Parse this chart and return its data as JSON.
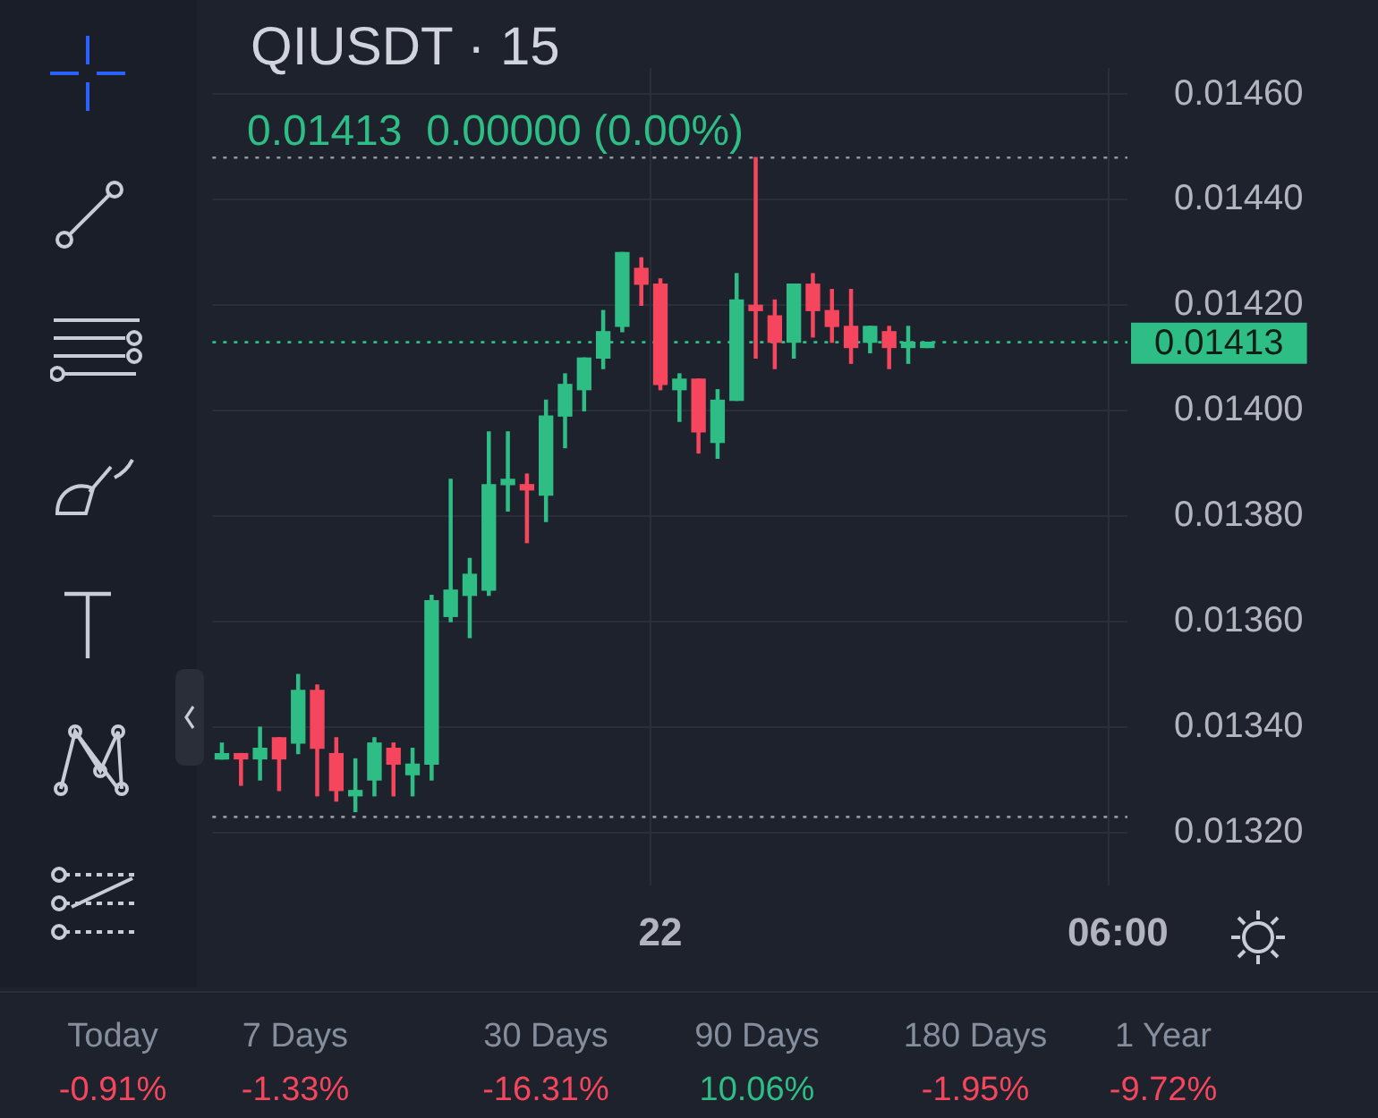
{
  "chart_data": {
    "type": "candlestick",
    "title": "QIUSDT · 15",
    "subtitle": "0.01413  0.00000 (0.00%)",
    "categories": [
      null,
      null,
      null,
      null,
      null,
      null,
      null,
      null,
      null,
      null,
      null,
      null,
      null,
      null,
      null,
      null,
      null,
      null,
      null,
      null,
      null,
      null,
      null,
      "22",
      null,
      null,
      null,
      null,
      null,
      null,
      null,
      null,
      null,
      null,
      null,
      null,
      null,
      null,
      null,
      null,
      null,
      null,
      null,
      null,
      null,
      null,
      null,
      "06:00"
    ],
    "ohlc": [
      [
        0.01334,
        0.01337,
        0.01334,
        0.01335
      ],
      [
        0.01335,
        0.01335,
        0.01329,
        0.01334
      ],
      [
        0.01334,
        0.0134,
        0.0133,
        0.01336
      ],
      [
        0.01338,
        0.01338,
        0.01328,
        0.01334
      ],
      [
        0.01337,
        0.0135,
        0.01335,
        0.01347
      ],
      [
        0.01347,
        0.01348,
        0.01327,
        0.01336
      ],
      [
        0.01335,
        0.01338,
        0.01326,
        0.01328
      ],
      [
        0.01327,
        0.01334,
        0.01324,
        0.01328
      ],
      [
        0.0133,
        0.01338,
        0.01327,
        0.01337
      ],
      [
        0.01336,
        0.01337,
        0.01327,
        0.01333
      ],
      [
        0.01331,
        0.01336,
        0.01327,
        0.01333
      ],
      [
        0.01333,
        0.01365,
        0.0133,
        0.01364
      ],
      [
        0.01361,
        0.01387,
        0.0136,
        0.01366
      ],
      [
        0.01365,
        0.01372,
        0.01357,
        0.01369
      ],
      [
        0.01366,
        0.01396,
        0.01365,
        0.01386
      ],
      [
        0.01386,
        0.01396,
        0.01381,
        0.01387
      ],
      [
        0.01386,
        0.01388,
        0.01375,
        0.01385
      ],
      [
        0.01384,
        0.01402,
        0.01379,
        0.01399
      ],
      [
        0.01399,
        0.01407,
        0.01393,
        0.01405
      ],
      [
        0.01404,
        0.0141,
        0.014,
        0.0141
      ],
      [
        0.0141,
        0.01419,
        0.01408,
        0.01415
      ],
      [
        0.01416,
        0.0143,
        0.01415,
        0.0143
      ],
      [
        0.01427,
        0.01429,
        0.0142,
        0.01424
      ],
      [
        0.01424,
        0.01425,
        0.01404,
        0.01405
      ],
      [
        0.01404,
        0.01407,
        0.01398,
        0.01406
      ],
      [
        0.01406,
        0.01406,
        0.01392,
        0.01396
      ],
      [
        0.01394,
        0.01404,
        0.01391,
        0.01402
      ],
      [
        0.01402,
        0.01426,
        0.01402,
        0.01421
      ],
      [
        0.0142,
        0.01448,
        0.0141,
        0.01419
      ],
      [
        0.01418,
        0.01421,
        0.01408,
        0.01413
      ],
      [
        0.01413,
        0.01424,
        0.0141,
        0.01424
      ],
      [
        0.01424,
        0.01426,
        0.01414,
        0.01419
      ],
      [
        0.01419,
        0.01423,
        0.01413,
        0.01416
      ],
      [
        0.01416,
        0.01423,
        0.01409,
        0.01412
      ],
      [
        0.01413,
        0.01416,
        0.01411,
        0.01416
      ],
      [
        0.01415,
        0.01416,
        0.01408,
        0.01412
      ],
      [
        0.01412,
        0.01416,
        0.01409,
        0.01413
      ],
      [
        0.01412,
        0.01413,
        0.01412,
        0.01413
      ],
      null,
      null,
      null,
      null,
      null,
      null,
      null,
      null,
      null,
      null
    ],
    "colors": [
      "#2ebd85",
      "#f6465d",
      "#2ebd85",
      "#f6465d",
      "#2ebd85",
      "#f6465d",
      "#f6465d",
      "#2ebd85",
      "#2ebd85",
      "#f6465d",
      "#2ebd85",
      "#2ebd85",
      "#2ebd85",
      "#2ebd85",
      "#2ebd85",
      "#2ebd85",
      "#f6465d",
      "#2ebd85",
      "#2ebd85",
      "#2ebd85",
      "#2ebd85",
      "#2ebd85",
      "#f6465d",
      "#f6465d",
      "#2ebd85",
      "#f6465d",
      "#2ebd85",
      "#2ebd85",
      "#f6465d",
      "#f6465d",
      "#2ebd85",
      "#f6465d",
      "#f6465d",
      "#f6465d",
      "#2ebd85",
      "#f6465d",
      "#2ebd85",
      "#2ebd85",
      null,
      null,
      null,
      null,
      null,
      null,
      null,
      null,
      null,
      null
    ],
    "ylim": [
      0.0131,
      0.01465
    ],
    "yticks": [
      {
        "value": 0.0132,
        "label": "0.01320"
      },
      {
        "value": 0.0134,
        "label": "0.01340"
      },
      {
        "value": 0.0136,
        "label": "0.01360"
      },
      {
        "value": 0.0138,
        "label": "0.01380"
      },
      {
        "value": 0.014,
        "label": "0.01400"
      },
      {
        "value": 0.0142,
        "label": "0.01420"
      },
      {
        "value": 0.0144,
        "label": "0.01440"
      },
      {
        "value": 0.0146,
        "label": "0.01460"
      }
    ],
    "grid": true,
    "ref_lines": [
      {
        "axis": "y",
        "value": 0.01448,
        "color": "#9598a1",
        "line_style": "dotted"
      },
      {
        "axis": "y",
        "value": 0.01323,
        "color": "#9598a1",
        "line_style": "dotted"
      },
      {
        "axis": "y",
        "value": 0.01413,
        "label": "0.01413",
        "color": "#2ebd85",
        "line_style": "dotted"
      }
    ],
    "annotations": [
      "Today",
      "-0.91%",
      "7 Days",
      "-1.33%",
      "30 Days",
      "-16.31%",
      "90 Days",
      "10.06%",
      "180 Days",
      "-1.95%",
      "1 Year",
      "-9.72%"
    ]
  }
}
